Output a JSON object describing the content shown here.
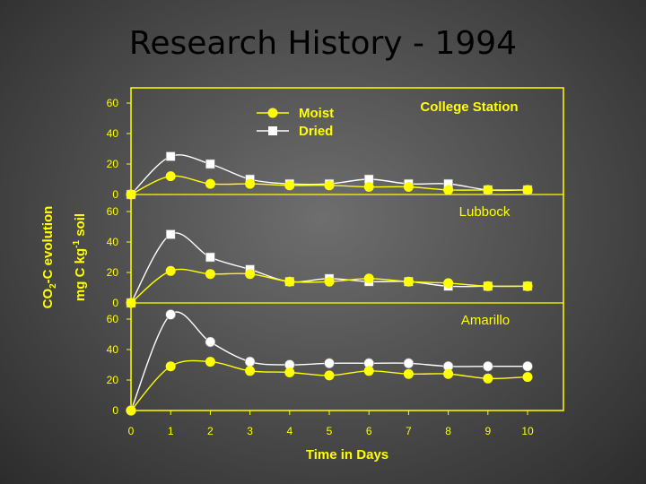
{
  "slide": {
    "title": "Research History - 1994"
  },
  "chart_data": {
    "type": "line",
    "x": [
      0,
      1,
      2,
      3,
      4,
      5,
      6,
      7,
      8,
      9,
      10
    ],
    "xlabel": "Time in Days",
    "ylabel_line1": {
      "a": "CO",
      "sub": "2",
      "b": "-C evolution"
    },
    "ylabel_line2": {
      "a": "mg C kg",
      "sup": "-1",
      "b": " soil"
    },
    "xlim": [
      0,
      10
    ],
    "legend": {
      "placement": "top-left",
      "entries": [
        "Moist",
        "Dried"
      ]
    },
    "colors": {
      "moist": "#ffff00",
      "dried": "#ffffff",
      "axes": "#ffff00"
    },
    "panels": [
      {
        "label": "College Station",
        "ylim": [
          0,
          60
        ],
        "yticks": [
          "0",
          "20",
          "40",
          "60"
        ],
        "series": [
          {
            "name": "Moist",
            "values": [
              0,
              12,
              7,
              7,
              6,
              6,
              5,
              5,
              3,
              3,
              3
            ]
          },
          {
            "name": "Dried",
            "values": [
              0,
              25,
              20,
              10,
              7,
              7,
              10,
              7,
              7,
              3,
              3
            ]
          }
        ]
      },
      {
        "label": "Lubbock",
        "ylim": [
          0,
          60
        ],
        "yticks": [
          "0",
          "20",
          "40",
          "60"
        ],
        "series": [
          {
            "name": "Moist",
            "values": [
              0,
              21,
              19,
              19,
              14,
              14,
              16,
              14,
              13,
              11,
              11
            ]
          },
          {
            "name": "Dried",
            "values": [
              0,
              45,
              30,
              22,
              14,
              16,
              14,
              14,
              11,
              11,
              11
            ]
          }
        ]
      },
      {
        "label": "Amarillo",
        "ylim": [
          0,
          60
        ],
        "yticks": [
          "0",
          "20",
          "40",
          "60"
        ],
        "series": [
          {
            "name": "Moist",
            "values": [
              0,
              29,
              32,
              26,
              25,
              23,
              26,
              24,
              24,
              21,
              22
            ]
          },
          {
            "name": "Dried",
            "values": [
              0,
              63,
              45,
              32,
              30,
              31,
              31,
              31,
              29,
              29,
              29
            ]
          }
        ]
      }
    ]
  }
}
